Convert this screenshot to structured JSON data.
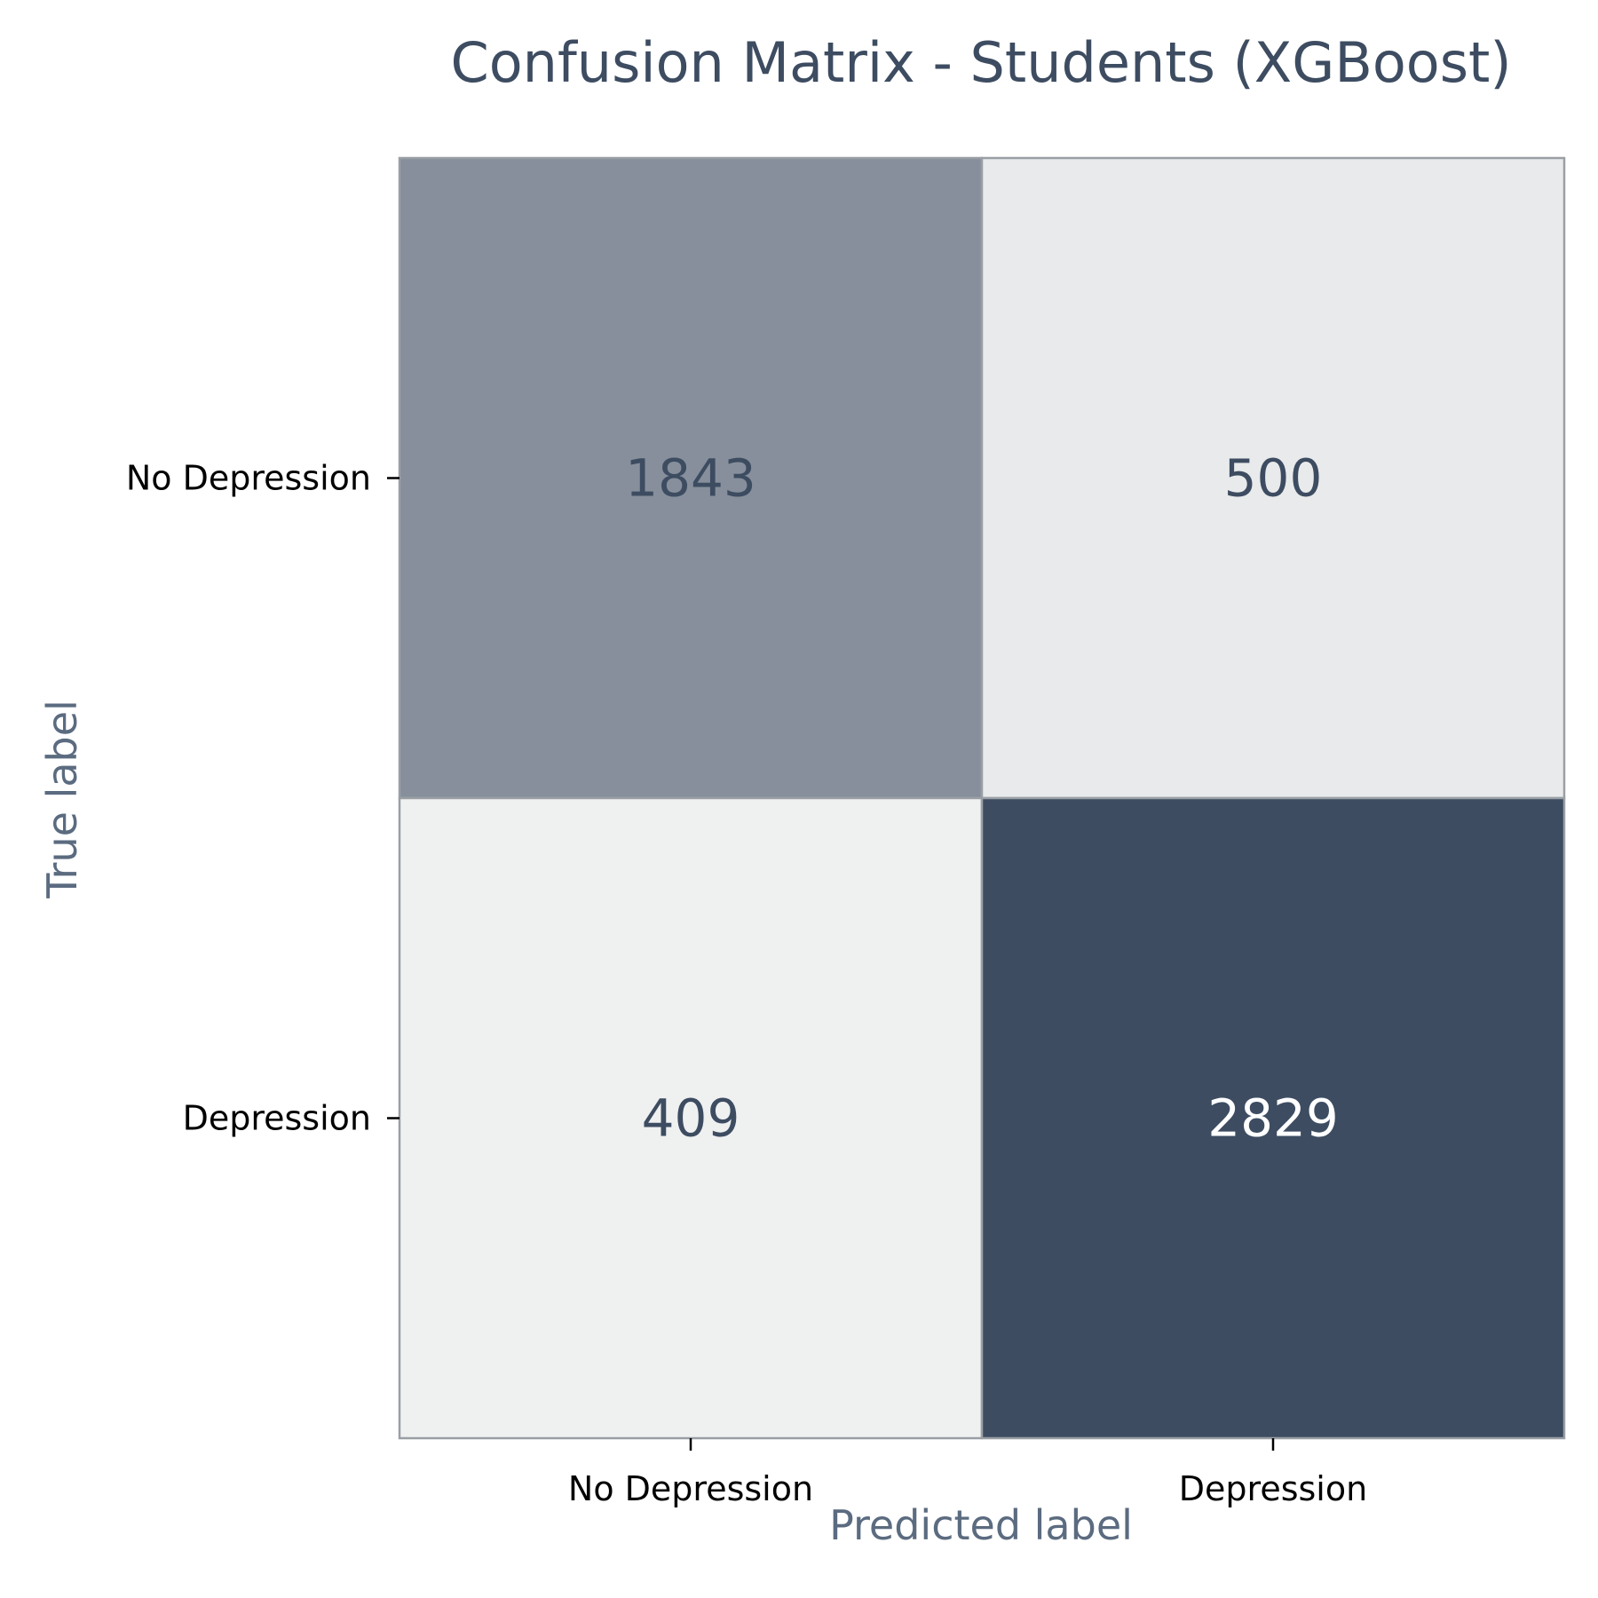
{
  "chart_data": {
    "type": "heatmap",
    "title": "Confusion Matrix - Students (XGBoost)",
    "xlabel": "Predicted label",
    "ylabel": "True label",
    "x_categories": [
      "No Depression",
      "Depression"
    ],
    "y_categories": [
      "No Depression",
      "Depression"
    ],
    "values": [
      [
        1843,
        500
      ],
      [
        409,
        2829
      ]
    ],
    "colormap": {
      "low": "#eff0f0",
      "high": "#3d4c61",
      "grid": "#9a9fa5",
      "text_dark": "#3d4c61",
      "text_light": "#ffffff"
    },
    "colorbar": false,
    "grid": false
  }
}
